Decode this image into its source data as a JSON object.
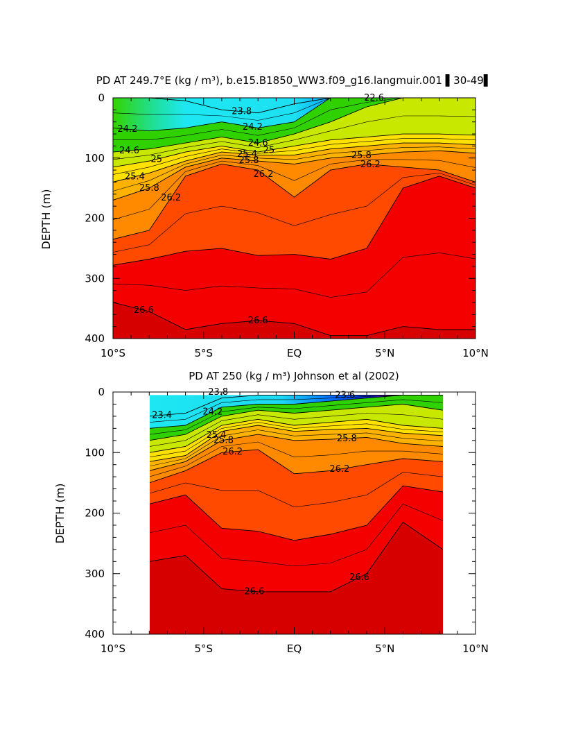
{
  "chart_data": [
    {
      "type": "contour",
      "title": "PD AT 249.7°E (kg / m³), b.e15.B1850_WW3.f09_g16.langmuir.001 ▌30-49▌",
      "xlabel": "",
      "ylabel": "DEPTH (m)",
      "xlim": [
        -10,
        10
      ],
      "ylim": [
        400,
        0
      ],
      "x_ticks": [
        -10,
        -5,
        0,
        5,
        10
      ],
      "x_tick_labels": [
        "10°S",
        "5°S",
        "EQ",
        "5°N",
        "10°N"
      ],
      "y_ticks": [
        0,
        100,
        200,
        300,
        400
      ],
      "y_tick_labels": [
        "0",
        "100",
        "200",
        "300",
        "400"
      ],
      "data_extent_x": [
        -10,
        10
      ],
      "isopycnal_depths": {
        "lats": [
          -10,
          -8,
          -6,
          -4,
          -2,
          0,
          2,
          4,
          6,
          8,
          10
        ],
        "levels": [
          {
            "value": 23.8,
            "depth": [
              0,
              0,
              5,
              20,
              25,
              10,
              0,
              0,
              0,
              0,
              0
            ]
          },
          {
            "value": 24.2,
            "depth": [
              50,
              55,
              50,
              40,
              50,
              40,
              0,
              0,
              0,
              0,
              0
            ]
          },
          {
            "value": 24.6,
            "depth": [
              90,
              85,
              75,
              65,
              75,
              60,
              40,
              15,
              0,
              0,
              0
            ]
          },
          {
            "value": 25.0,
            "depth": [
              115,
              105,
              90,
              80,
              90,
              80,
              70,
              65,
              60,
              60,
              62
            ]
          },
          {
            "value": 25.4,
            "depth": [
              140,
              125,
              105,
              90,
              95,
              95,
              85,
              80,
              75,
              75,
              78
            ]
          },
          {
            "value": 25.8,
            "depth": [
              170,
              150,
              115,
              100,
              105,
              110,
              100,
              95,
              90,
              88,
              92
            ]
          },
          {
            "value": 26.2,
            "depth": [
              235,
              220,
              130,
              110,
              120,
              165,
              120,
              110,
              115,
              120,
              140
            ]
          },
          {
            "value": 26.4,
            "depth": [
              278,
              268,
              255,
              250,
              262,
              260,
              268,
              250,
              150,
              130,
              150
            ]
          },
          {
            "value": 26.6,
            "depth": [
              340,
              355,
              385,
              375,
              370,
              375,
              395,
              395,
              380,
              385,
              385
            ]
          }
        ]
      },
      "contour_labels": [
        "23.8",
        "24.2",
        "24.2",
        "24.6",
        "24.6",
        "25",
        "25",
        "25.4",
        "25.4",
        "25.8",
        "25.8",
        "26.2",
        "26.2",
        "26.2",
        "26.6",
        "26.6",
        "22.6",
        "25.8"
      ]
    },
    {
      "type": "contour",
      "title": "PD AT 250 (kg / m³) Johnson et al (2002)",
      "xlabel": "",
      "ylabel": "DEPTH (m)",
      "xlim": [
        -10,
        10
      ],
      "ylim": [
        400,
        0
      ],
      "x_ticks": [
        -10,
        -5,
        0,
        5,
        10
      ],
      "x_tick_labels": [
        "10°S",
        "5°S",
        "EQ",
        "5°N",
        "10°N"
      ],
      "y_ticks": [
        0,
        100,
        200,
        300,
        400
      ],
      "y_tick_labels": [
        "0",
        "100",
        "200",
        "300",
        "400"
      ],
      "data_extent_x": [
        -8,
        8.2
      ],
      "data_extent_y": [
        5,
        400
      ],
      "isopycnal_depths": {
        "lats": [
          -8,
          -6,
          -4,
          -2,
          0,
          2,
          4,
          6,
          8.2
        ],
        "levels": [
          {
            "value": 23.4,
            "depth": [
              40,
              35,
              10,
              5,
              5,
              5,
              5,
              5,
              5
            ]
          },
          {
            "value": 24.2,
            "depth": [
              60,
              55,
              25,
              20,
              20,
              15,
              10,
              5,
              5
            ]
          },
          {
            "value": 24.6,
            "depth": [
              80,
              70,
              40,
              30,
              35,
              30,
              25,
              20,
              30
            ]
          },
          {
            "value": 25.0,
            "depth": [
              100,
              90,
              55,
              45,
              55,
              50,
              45,
              55,
              60
            ]
          },
          {
            "value": 25.4,
            "depth": [
              115,
              105,
              65,
              55,
              65,
              62,
              60,
              68,
              72
            ]
          },
          {
            "value": 25.8,
            "depth": [
              130,
              115,
              80,
              70,
              80,
              78,
              75,
              85,
              90
            ]
          },
          {
            "value": 26.2,
            "depth": [
              150,
              130,
              100,
              95,
              135,
              130,
              120,
              110,
              115
            ]
          },
          {
            "value": 26.4,
            "depth": [
              185,
              170,
              225,
              230,
              245,
              235,
              220,
              155,
              165
            ]
          },
          {
            "value": 26.6,
            "depth": [
              280,
              270,
              325,
              330,
              330,
              330,
              300,
              215,
              260
            ]
          }
        ]
      },
      "contour_labels": [
        "23.4",
        "23.8",
        "24.2",
        "25.4",
        "25.8",
        "26.2",
        "26.2",
        "26.6",
        "26.6",
        "23.6",
        "25.8"
      ]
    }
  ],
  "colors": {
    "densest": "#d60000",
    "red": "#f40000",
    "orange_red": "#ff4a00",
    "orange": "#ff8a00",
    "yellow": "#ffe100",
    "green": "#29d400",
    "cyan": "#1de8f2",
    "blue": "#0040ff",
    "magenta": "#ff00ff",
    "missing": "#c0c0c0"
  }
}
